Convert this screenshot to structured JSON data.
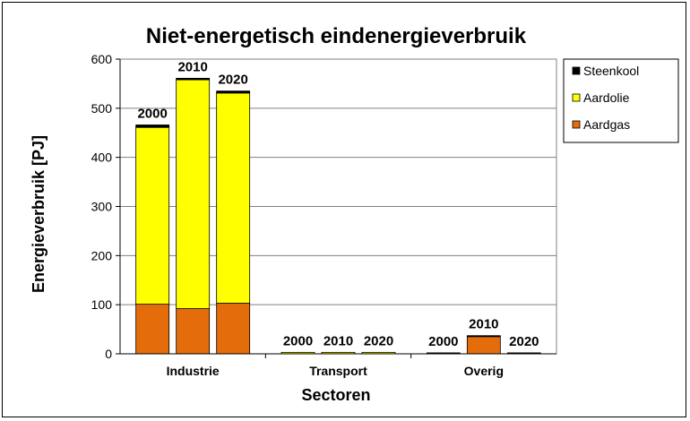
{
  "chart_data": {
    "type": "bar",
    "stacked": true,
    "title": "Niet-energetisch eindenergieverbruik",
    "xlabel": "Sectoren",
    "ylabel": "Energieverbruik [PJ]",
    "ylim": [
      0,
      600
    ],
    "yticks": [
      0,
      100,
      200,
      300,
      400,
      500,
      600
    ],
    "grid": true,
    "legend_position": "right",
    "categories": [
      "Industrie",
      "Transport",
      "Overig"
    ],
    "years": [
      "2000",
      "2010",
      "2020"
    ],
    "series": [
      {
        "name": "Aardgas",
        "color": "#E46C0A",
        "values": [
          [
            101,
            92,
            103
          ],
          [
            0,
            0,
            0
          ],
          [
            0,
            35,
            0
          ]
        ]
      },
      {
        "name": "Aardolie",
        "color": "#FFFF00",
        "values": [
          [
            360,
            466,
            428
          ],
          [
            3,
            3,
            3
          ],
          [
            0,
            0,
            0
          ]
        ]
      },
      {
        "name": "Steenkool",
        "color": "#000000",
        "values": [
          [
            5,
            3,
            4
          ],
          [
            0,
            0,
            0
          ],
          [
            2,
            2,
            2
          ]
        ]
      }
    ],
    "legend_order": [
      "Steenkool",
      "Aardolie",
      "Aardgas"
    ]
  }
}
